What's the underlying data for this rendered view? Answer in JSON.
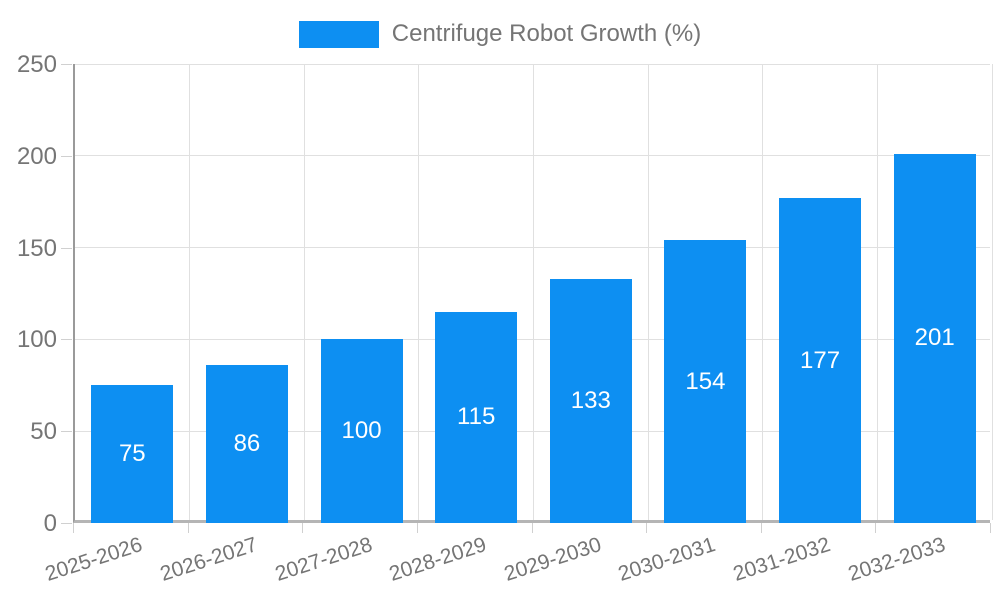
{
  "chart_data": {
    "type": "bar",
    "legend_label": "Centrifuge Robot Growth (%)",
    "legend_position": "top",
    "categories": [
      "2025-2026",
      "2026-2027",
      "2027-2028",
      "2028-2029",
      "2029-2030",
      "2030-2031",
      "2031-2032",
      "2032-2033"
    ],
    "values": [
      75,
      86,
      100,
      115,
      133,
      154,
      177,
      201
    ],
    "value_labels": [
      "75",
      "86",
      "100",
      "115",
      "133",
      "154",
      "177",
      "201"
    ],
    "xlabel": "",
    "ylabel": "",
    "ylim": [
      0,
      250
    ],
    "yticks": [
      0,
      50,
      100,
      150,
      200,
      250
    ],
    "grid": true,
    "colors": {
      "bar": "#0D8FF2",
      "value_label": "#ffffff",
      "tick_label": "#757575",
      "legend_text": "#757575",
      "gridline": "#e0e0e0"
    }
  }
}
